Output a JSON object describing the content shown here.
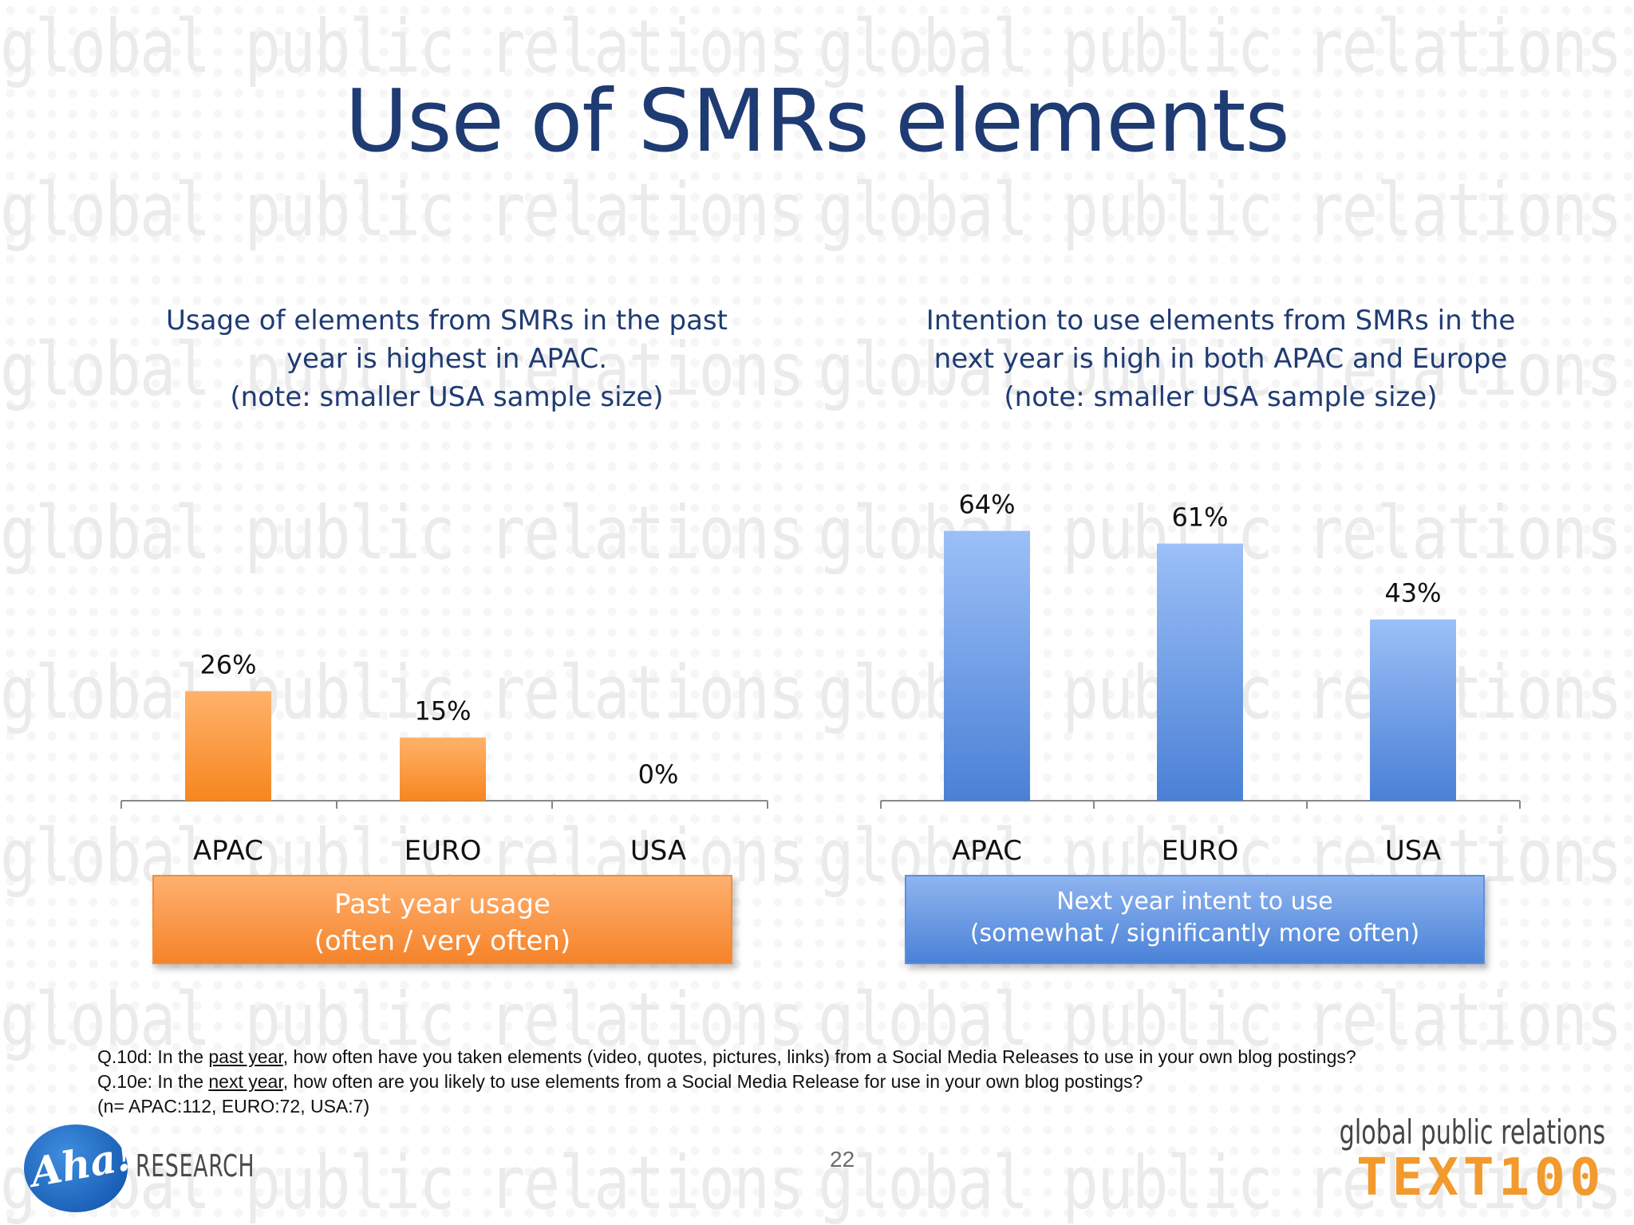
{
  "title": "Use of SMRs elements",
  "watermark_text": "global public relations",
  "left_panel": {
    "subtitle_lines": [
      "Usage of elements from SMRs in the past",
      "year is highest in APAC.",
      "(note: smaller USA sample size)"
    ],
    "legend_lines": [
      "Past year usage",
      "(often / very often)"
    ]
  },
  "right_panel": {
    "subtitle_lines": [
      "Intention to use elements from SMRs in the",
      "next year is high in both APAC and Europe",
      "(note: smaller USA sample size)"
    ],
    "legend_lines": [
      "Next year intent to use",
      "(somewhat / significantly more often)"
    ]
  },
  "chart_data": [
    {
      "type": "bar",
      "categories": [
        "APAC",
        "EURO",
        "USA"
      ],
      "values": [
        26,
        15,
        0
      ],
      "value_labels": [
        "26%",
        "15%",
        "0%"
      ],
      "series": [
        {
          "name": "Past year usage (often / very often)",
          "values": [
            26,
            15,
            0
          ]
        }
      ],
      "ylim": [
        0,
        70
      ],
      "color": "#f7922e"
    },
    {
      "type": "bar",
      "categories": [
        "APAC",
        "EURO",
        "USA"
      ],
      "values": [
        64,
        61,
        43
      ],
      "value_labels": [
        "64%",
        "61%",
        "43%"
      ],
      "series": [
        {
          "name": "Next year intent to use (somewhat / significantly more often)",
          "values": [
            64,
            61,
            43
          ]
        }
      ],
      "ylim": [
        0,
        70
      ],
      "color": "#6a9ae6"
    }
  ],
  "footnote": {
    "line1_prefix": "Q.10d: In the ",
    "line1_underlined": "past year",
    "line1_suffix": ", how often have you taken elements (video, quotes, pictures, links) from a Social Media Releases to use in your own blog postings?",
    "line2_prefix": "Q.10e: In the ",
    "line2_underlined": "next year",
    "line2_suffix": ", how often are you likely to use elements from a Social Media Release for use in your own blog postings?",
    "line3": "(n= APAC:112, EURO:72, USA:7)"
  },
  "page_number": "22",
  "logo_left": {
    "mark": "Aha!",
    "word": "RESEARCH"
  },
  "brand_right": {
    "line1": "global public relations",
    "line2": "TEXT100"
  }
}
